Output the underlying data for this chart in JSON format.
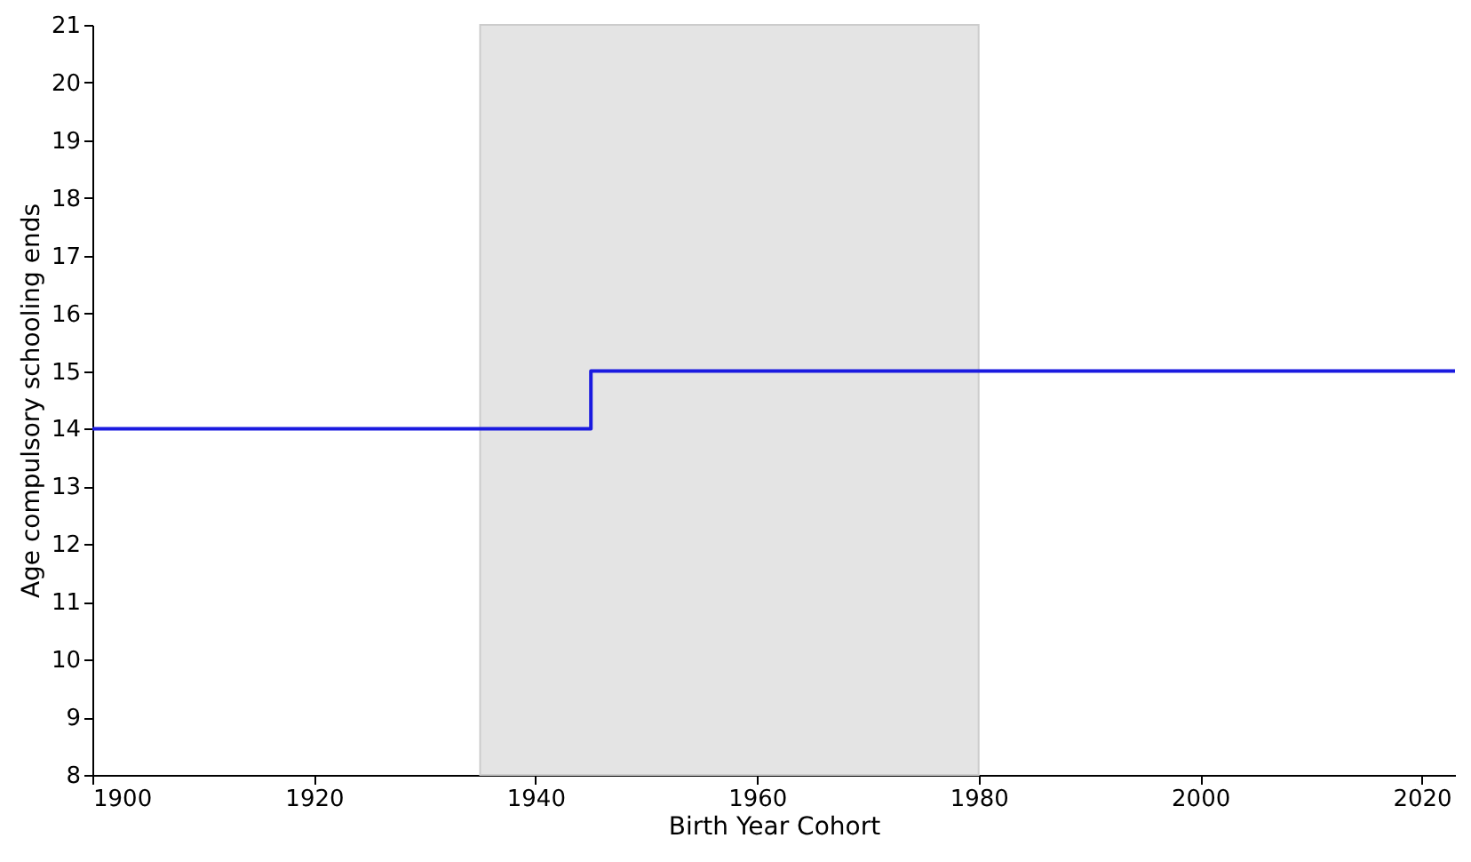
{
  "chart_data": {
    "type": "step",
    "xlabel": "Birth Year Cohort",
    "ylabel": "Age compulsory schooling ends",
    "x": [
      1900,
      1945,
      2023
    ],
    "series": [
      {
        "color": "#1a1ae0",
        "values": [
          14,
          15,
          15
        ]
      }
    ],
    "xlim": [
      1900,
      2023
    ],
    "xticks": [
      1900,
      1920,
      1940,
      1960,
      1980,
      2000,
      2020
    ],
    "ylim": [
      8,
      21
    ],
    "yticks": [
      8,
      9,
      10,
      11,
      12,
      13,
      14,
      15,
      16,
      17,
      18,
      19,
      20,
      21
    ],
    "bands": [
      {
        "axis": "x",
        "from": 1935,
        "to": 1980,
        "color": "#e4e4e4"
      }
    ],
    "grid": false
  }
}
